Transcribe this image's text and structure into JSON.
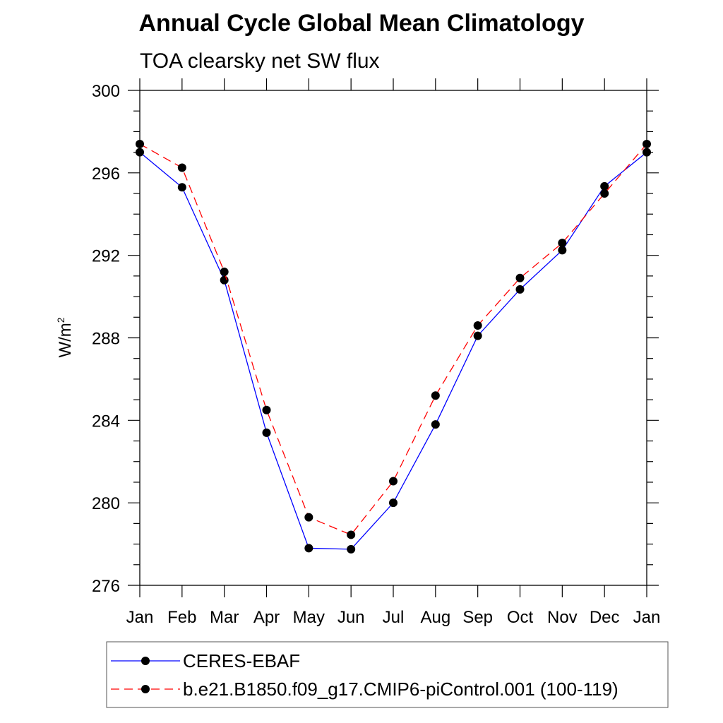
{
  "chart_data": {
    "type": "line",
    "title": "Annual Cycle Global Mean Climatology",
    "subtitle": "TOA clearsky net SW flux",
    "ylabel": "W/m",
    "ylabel_superscript": "2",
    "xlabel": "",
    "ylim": [
      276,
      300
    ],
    "yticks": [
      276,
      280,
      284,
      288,
      292,
      296,
      300
    ],
    "categories": [
      "Jan",
      "Feb",
      "Mar",
      "Apr",
      "May",
      "Jun",
      "Jul",
      "Aug",
      "Sep",
      "Oct",
      "Nov",
      "Dec",
      "Jan"
    ],
    "grid": false,
    "legend_placement": "bottom",
    "series": [
      {
        "name": "CERES-EBAF",
        "color": "#0000ff",
        "dash": "solid",
        "marker": "filled-circle",
        "values": [
          297.0,
          295.3,
          290.8,
          283.4,
          277.8,
          277.75,
          280.0,
          283.8,
          288.1,
          290.35,
          292.25,
          295.35,
          297.0
        ]
      },
      {
        "name": "b.e21.B1850.f09_g17.CMIP6-piControl.001 (100-119)",
        "color": "#ff0000",
        "dash": "dashed",
        "marker": "filled-circle",
        "values": [
          297.4,
          296.25,
          291.2,
          284.5,
          279.3,
          278.45,
          281.05,
          285.2,
          288.6,
          290.9,
          292.6,
          295.0,
          297.4
        ]
      }
    ]
  }
}
